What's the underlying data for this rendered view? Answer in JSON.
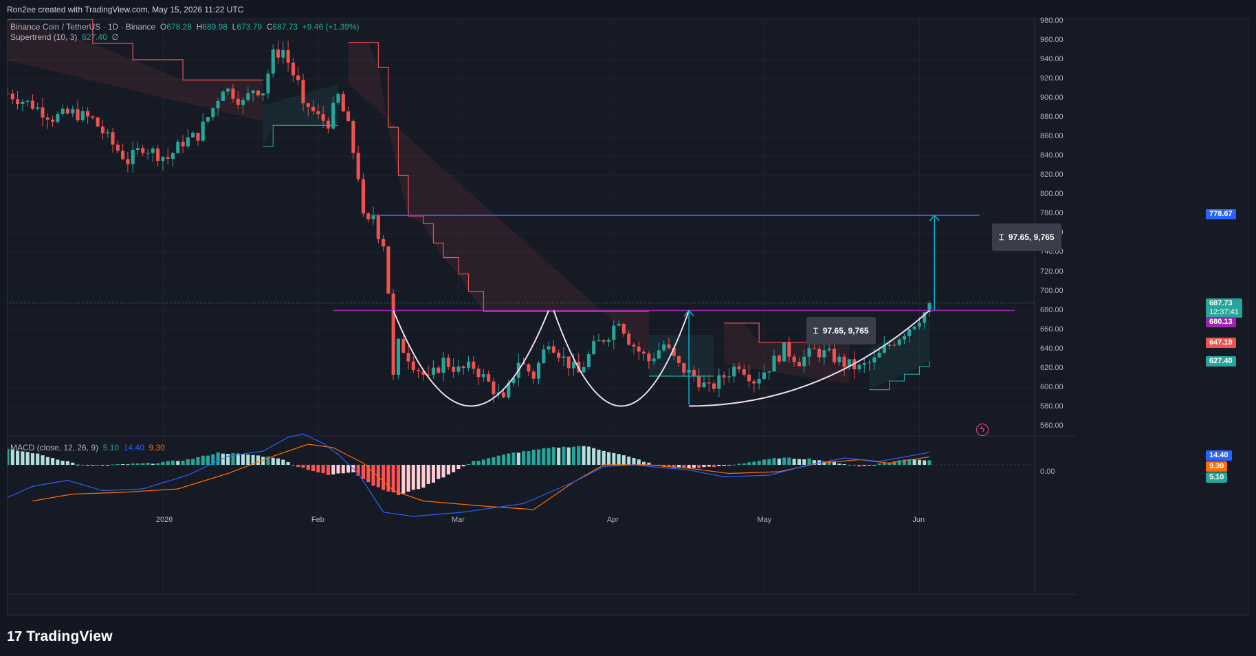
{
  "header": {
    "attribution": "Ron2ee created with TradingView.com, May 15, 2026 11:22 UTC"
  },
  "legend": {
    "symbol": "Binance Coin / TetherUS · 1D · Binance",
    "open_label": "O",
    "open": "678.28",
    "high_label": "H",
    "high": "689.98",
    "low_label": "L",
    "low": "673.79",
    "close_label": "C",
    "close": "687.73",
    "change": "+9.46 (+1.39%)",
    "supertrend_label": "Supertrend (10, 3)",
    "supertrend_value": "627.40",
    "supertrend_extra": "∅",
    "macd_label": "MACD (close, 12, 26, 9)",
    "macd_hist": "5.10",
    "macd_line": "14.40",
    "macd_signal": "9.30"
  },
  "measure": {
    "label_left": "97.65, 9,765",
    "label_right": "97.65, 9,765"
  },
  "price_tags": {
    "target": "778.67",
    "last": "687.73",
    "countdown": "12:37:41",
    "neckline": "680.13",
    "resistance": "647.19",
    "supertrend": "627.40",
    "macd_line": "14.40",
    "macd_signal": "9.30",
    "macd_hist": "5.10"
  },
  "colors": {
    "up": "#26a69a",
    "down": "#ef5350",
    "neckline": "#9c27b0",
    "target_line": "#2962ff",
    "measure_arrow": "#00bcd4",
    "cup_curve": "#f0e0f0",
    "macd_line": "#2962ff",
    "signal_line": "#ff6d00"
  },
  "footer": {
    "brand": "TradingView",
    "brand_mark": "17"
  },
  "chart_data": [
    {
      "type": "candlestick",
      "title": "Binance Coin / TetherUS · 1D · Binance",
      "x_tick_labels": [
        "2026",
        "Feb",
        "Mar",
        "Apr",
        "May",
        "Jun"
      ],
      "x_ticks": [
        "2026-01-01",
        "2026-02-01",
        "2026-03-01",
        "2026-04-01",
        "2026-05-01",
        "2026-06-01"
      ],
      "xlim": [
        "2025-12-01",
        "2026-06-24"
      ],
      "ylim": [
        550,
        982
      ],
      "y_ticks": [
        560,
        580,
        600,
        620,
        640,
        660,
        680,
        700,
        720,
        740,
        760,
        780,
        800,
        820,
        840,
        860,
        880,
        900,
        920,
        940,
        960,
        980
      ],
      "y_tick_labels": [
        "560.00",
        "580.00",
        "600.00",
        "620.00",
        "640.00",
        "660.00",
        "680.00",
        "700.00",
        "720.00",
        "740.00",
        "760.00",
        "780.00",
        "800.00",
        "820.00",
        "840.00",
        "860.00",
        "880.00",
        "900.00",
        "920.00",
        "940.00",
        "960.00",
        "980.00"
      ],
      "ohlc_pivots": [
        [
          "2025-12-01",
          905
        ],
        [
          "2025-12-06",
          893
        ],
        [
          "2025-12-10",
          880
        ],
        [
          "2025-12-14",
          885
        ],
        [
          "2025-12-18",
          878
        ],
        [
          "2025-12-22",
          852
        ],
        [
          "2025-12-25",
          835
        ],
        [
          "2025-12-28",
          850
        ],
        [
          "2025-12-31",
          842
        ],
        [
          "2026-01-02",
          838
        ],
        [
          "2026-01-05",
          855
        ],
        [
          "2026-01-08",
          862
        ],
        [
          "2026-01-11",
          890
        ],
        [
          "2026-01-13",
          912
        ],
        [
          "2026-01-15",
          905
        ],
        [
          "2026-01-17",
          895
        ],
        [
          "2026-01-19",
          910
        ],
        [
          "2026-01-21",
          908
        ],
        [
          "2026-01-23",
          945
        ],
        [
          "2026-01-25",
          950
        ],
        [
          "2026-01-27",
          925
        ],
        [
          "2026-01-28",
          915
        ],
        [
          "2026-01-29",
          888
        ],
        [
          "2026-01-30",
          892
        ],
        [
          "2026-02-01",
          880
        ],
        [
          "2026-02-03",
          875
        ],
        [
          "2026-02-05",
          902
        ],
        [
          "2026-02-07",
          870
        ],
        [
          "2026-02-08",
          845
        ],
        [
          "2026-02-09",
          820
        ],
        [
          "2026-02-10",
          775
        ],
        [
          "2026-02-11",
          770
        ],
        [
          "2026-02-12",
          780
        ],
        [
          "2026-02-13",
          760
        ],
        [
          "2026-02-14",
          750
        ],
        [
          "2026-02-15",
          700
        ],
        [
          "2026-02-16",
          610
        ],
        [
          "2026-02-17",
          645
        ],
        [
          "2026-02-18",
          640
        ],
        [
          "2026-02-20",
          625
        ],
        [
          "2026-02-23",
          608
        ],
        [
          "2026-02-26",
          628
        ],
        [
          "2026-03-01",
          618
        ],
        [
          "2026-03-04",
          622
        ],
        [
          "2026-03-07",
          605
        ],
        [
          "2026-03-10",
          585
        ],
        [
          "2026-03-13",
          628
        ],
        [
          "2026-03-16",
          612
        ],
        [
          "2026-03-19",
          650
        ],
        [
          "2026-03-22",
          630
        ],
        [
          "2026-03-25",
          615
        ],
        [
          "2026-03-28",
          642
        ],
        [
          "2026-03-31",
          656
        ],
        [
          "2026-04-02",
          672
        ],
        [
          "2026-04-04",
          650
        ],
        [
          "2026-04-06",
          638
        ],
        [
          "2026-04-08",
          628
        ],
        [
          "2026-04-11",
          645
        ],
        [
          "2026-04-14",
          622
        ],
        [
          "2026-04-17",
          612
        ],
        [
          "2026-04-20",
          598
        ],
        [
          "2026-04-23",
          612
        ],
        [
          "2026-04-26",
          625
        ],
        [
          "2026-04-29",
          608
        ],
        [
          "2026-05-02",
          622
        ],
        [
          "2026-05-05",
          640
        ],
        [
          "2026-05-08",
          628
        ],
        [
          "2026-05-11",
          638
        ],
        [
          "2026-05-14",
          634
        ],
        [
          "2026-05-17",
          625
        ],
        [
          "2026-05-20",
          620
        ],
        [
          "2026-05-23",
          628
        ],
        [
          "2026-05-26",
          645
        ],
        [
          "2026-05-29",
          658
        ],
        [
          "2026-05-31",
          668
        ],
        [
          "2026-06-02",
          678
        ],
        [
          "2026-06-03",
          687.73
        ]
      ],
      "last_candle": {
        "open": 678.28,
        "high": 689.98,
        "low": 673.79,
        "close": 687.73
      },
      "supertrend": {
        "name": "Supertrend (10, 3)",
        "value": 627.4,
        "segments": [
          {
            "trend": "down",
            "points": [
              [
                "2025-12-01",
                982
              ],
              [
                "2025-12-18",
                957
              ],
              [
                "2025-12-26",
                940
              ],
              [
                "2026-01-05",
                919
              ],
              [
                "2026-01-21",
                919
              ]
            ]
          },
          {
            "trend": "up",
            "points": [
              [
                "2026-01-21",
                850
              ],
              [
                "2026-01-23",
                872
              ],
              [
                "2026-02-05",
                872
              ]
            ]
          },
          {
            "trend": "down",
            "points": [
              [
                "2026-02-07",
                958
              ],
              [
                "2026-02-11",
                958
              ],
              [
                "2026-02-13",
                932
              ],
              [
                "2026-02-15",
                870
              ],
              [
                "2026-02-17",
                820
              ],
              [
                "2026-02-19",
                778
              ],
              [
                "2026-02-22",
                770
              ],
              [
                "2026-02-24",
                750
              ],
              [
                "2026-02-26",
                735
              ],
              [
                "2026-03-01",
                718
              ],
              [
                "2026-03-03",
                700
              ],
              [
                "2026-03-06",
                679
              ],
              [
                "2026-04-08",
                679
              ]
            ]
          },
          {
            "trend": "up",
            "points": [
              [
                "2026-04-08",
                612
              ],
              [
                "2026-04-21",
                612
              ]
            ]
          },
          {
            "trend": "down",
            "points": [
              [
                "2026-04-23",
                667
              ],
              [
                "2026-04-27",
                667
              ],
              [
                "2026-04-30",
                647
              ],
              [
                "2026-05-18",
                647
              ]
            ]
          },
          {
            "trend": "up",
            "points": [
              [
                "2026-05-22",
                598
              ],
              [
                "2026-05-26",
                607
              ],
              [
                "2026-05-29",
                614
              ],
              [
                "2026-06-01",
                622
              ],
              [
                "2026-06-03",
                627.4
              ]
            ]
          }
        ]
      },
      "levels": [
        {
          "name": "neckline",
          "value": 680.13
        },
        {
          "name": "target",
          "value": 778.67
        }
      ],
      "measure": {
        "delta": 97.65,
        "ticks": 9765
      }
    },
    {
      "type": "bar",
      "title": "MACD (close, 12, 26, 9)",
      "ylim": [
        -55,
        52
      ],
      "y_tick_labels": [
        "0.00"
      ],
      "histogram_pivots": [
        [
          "2025-12-01",
          18
        ],
        [
          "2025-12-06",
          14
        ],
        [
          "2025-12-10",
          8
        ],
        [
          "2025-12-13",
          4
        ],
        [
          "2025-12-16",
          -1
        ],
        [
          "2025-12-22",
          0
        ],
        [
          "2025-12-30",
          2
        ],
        [
          "2026-01-06",
          6
        ],
        [
          "2026-01-12",
          14
        ],
        [
          "2026-01-18",
          12
        ],
        [
          "2026-01-24",
          8
        ],
        [
          "2026-01-28",
          -2
        ],
        [
          "2026-02-03",
          -12
        ],
        [
          "2026-02-08",
          -8
        ],
        [
          "2026-02-12",
          -24
        ],
        [
          "2026-02-17",
          -35
        ],
        [
          "2026-02-22",
          -26
        ],
        [
          "2026-02-28",
          -8
        ],
        [
          "2026-03-04",
          4
        ],
        [
          "2026-03-12",
          14
        ],
        [
          "2026-03-20",
          20
        ],
        [
          "2026-03-26",
          22
        ],
        [
          "2026-04-01",
          14
        ],
        [
          "2026-04-06",
          6
        ],
        [
          "2026-04-10",
          -2
        ],
        [
          "2026-04-16",
          -4
        ],
        [
          "2026-04-22",
          -2
        ],
        [
          "2026-04-28",
          3
        ],
        [
          "2026-05-04",
          8
        ],
        [
          "2026-05-10",
          7
        ],
        [
          "2026-05-16",
          2
        ],
        [
          "2026-05-20",
          -2
        ],
        [
          "2026-05-25",
          2
        ],
        [
          "2026-05-30",
          7
        ],
        [
          "2026-06-03",
          5.1
        ]
      ],
      "macd_pivots": [
        [
          "2025-12-01",
          -38
        ],
        [
          "2025-12-06",
          -25
        ],
        [
          "2025-12-13",
          -18
        ],
        [
          "2025-12-20",
          -30
        ],
        [
          "2025-12-28",
          -28
        ],
        [
          "2026-01-06",
          -12
        ],
        [
          "2026-01-14",
          10
        ],
        [
          "2026-01-21",
          16
        ],
        [
          "2026-01-26",
          32
        ],
        [
          "2026-01-29",
          36
        ],
        [
          "2026-02-02",
          25
        ],
        [
          "2026-02-05",
          12
        ],
        [
          "2026-02-09",
          -10
        ],
        [
          "2026-02-14",
          -55
        ],
        [
          "2026-02-20",
          -60
        ],
        [
          "2026-03-02",
          -55
        ],
        [
          "2026-03-14",
          -45
        ],
        [
          "2026-03-24",
          -20
        ],
        [
          "2026-03-30",
          -2
        ],
        [
          "2026-04-05",
          0
        ],
        [
          "2026-04-10",
          -3
        ],
        [
          "2026-04-16",
          -6
        ],
        [
          "2026-04-23",
          -14
        ],
        [
          "2026-05-02",
          -12
        ],
        [
          "2026-05-10",
          0
        ],
        [
          "2026-05-17",
          8
        ],
        [
          "2026-05-24",
          4
        ],
        [
          "2026-06-03",
          14.4
        ]
      ],
      "signal_pivots": [
        [
          "2025-12-06",
          -42
        ],
        [
          "2025-12-14",
          -34
        ],
        [
          "2025-12-24",
          -32
        ],
        [
          "2026-01-04",
          -28
        ],
        [
          "2026-01-14",
          -10
        ],
        [
          "2026-01-23",
          10
        ],
        [
          "2026-01-30",
          24
        ],
        [
          "2026-02-04",
          20
        ],
        [
          "2026-02-10",
          2
        ],
        [
          "2026-02-16",
          -30
        ],
        [
          "2026-02-22",
          -42
        ],
        [
          "2026-03-06",
          -48
        ],
        [
          "2026-03-16",
          -52
        ],
        [
          "2026-03-24",
          -20
        ],
        [
          "2026-03-30",
          0
        ],
        [
          "2026-04-08",
          0
        ],
        [
          "2026-04-16",
          -4
        ],
        [
          "2026-04-24",
          -10
        ],
        [
          "2026-05-04",
          -8
        ],
        [
          "2026-05-12",
          2
        ],
        [
          "2026-05-20",
          6
        ],
        [
          "2026-05-26",
          2
        ],
        [
          "2026-06-03",
          9.3
        ]
      ]
    }
  ]
}
